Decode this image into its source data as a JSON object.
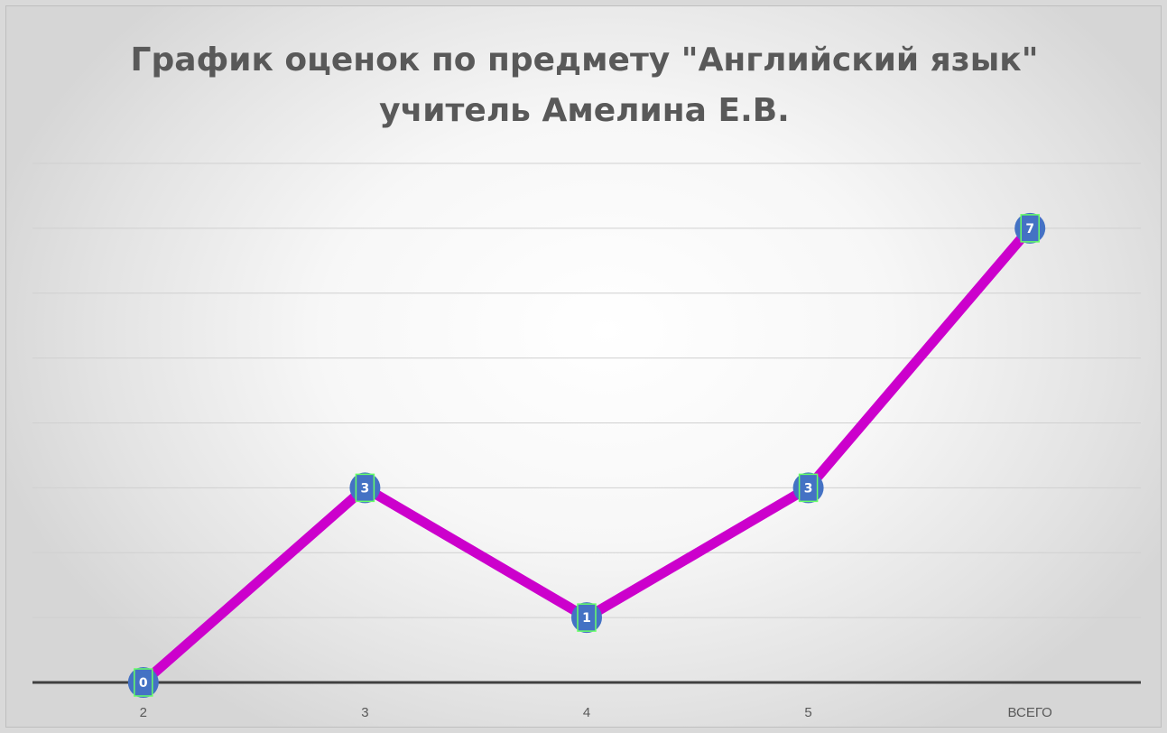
{
  "chart_data": {
    "type": "line",
    "title_line1": "График оценок по предмету \"Английский язык\"",
    "title_line2": "учитель Амелина Е.В.",
    "categories": [
      "2",
      "3",
      "4",
      "5",
      "ВСЕГО"
    ],
    "values": [
      0,
      3,
      1,
      3,
      7
    ],
    "ylim": [
      0,
      8
    ],
    "grid": true,
    "legend": "none",
    "line_color": "#cc00cc",
    "marker_color": "#4472c4",
    "label_box_color": "#66ff66"
  }
}
